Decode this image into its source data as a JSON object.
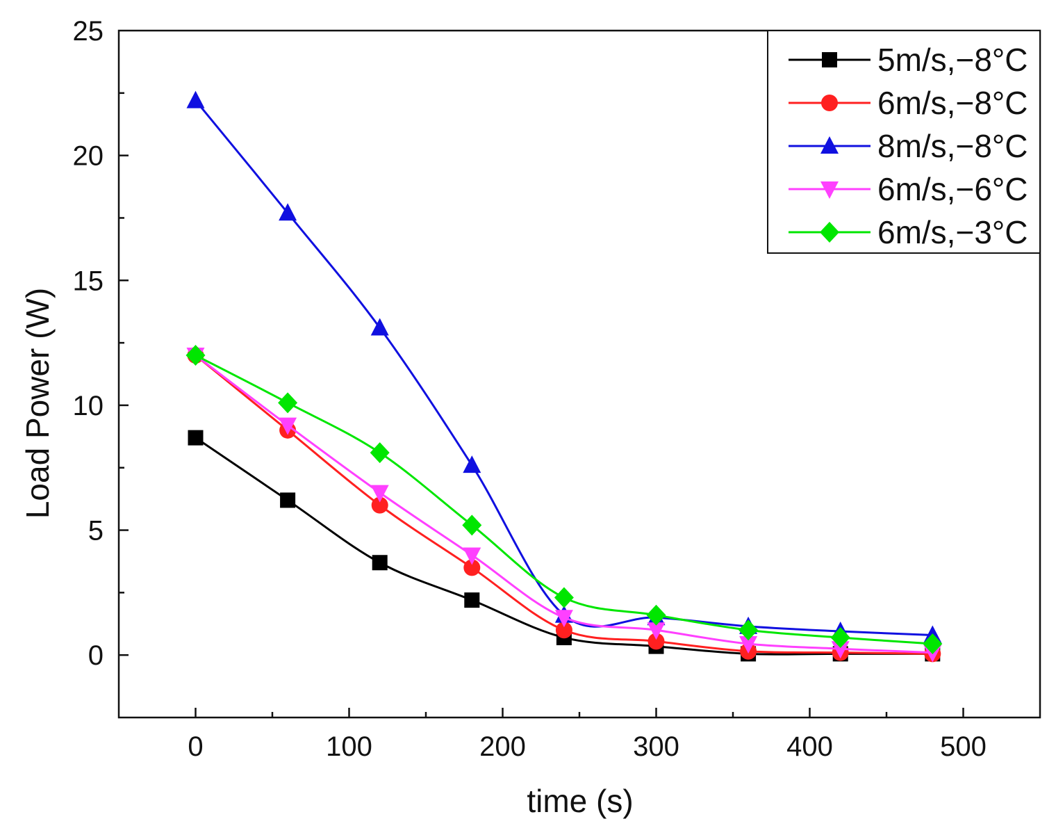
{
  "chart_data": {
    "type": "line",
    "xlabel": "time (s)",
    "ylabel": "Load Power (W)",
    "xlim": [
      -50,
      550
    ],
    "ylim": [
      -2.5,
      25
    ],
    "xticks": [
      0,
      100,
      200,
      300,
      400,
      500
    ],
    "yticks": [
      0,
      5,
      10,
      15,
      20,
      25
    ],
    "xtick_labels": [
      "0",
      "100",
      "200",
      "300",
      "400",
      "500"
    ],
    "ytick_labels": [
      "0",
      "5",
      "10",
      "15",
      "20",
      "25"
    ],
    "grid": false,
    "legend_position": "top-right",
    "x": [
      0,
      60,
      120,
      180,
      240,
      300,
      360,
      420,
      480
    ],
    "series": [
      {
        "name": "5m/s,−8°C",
        "color": "#000000",
        "marker": "square",
        "values": [
          8.7,
          6.2,
          3.7,
          2.2,
          0.7,
          0.35,
          0.05,
          0.05,
          0.05
        ]
      },
      {
        "name": "6m/s,−8°C",
        "color": "#ff2020",
        "marker": "circle",
        "values": [
          12.0,
          9.0,
          6.0,
          3.5,
          1.0,
          0.55,
          0.15,
          0.1,
          0.05
        ]
      },
      {
        "name": "8m/s,−8°C",
        "color": "#1010e0",
        "marker": "triangle-up",
        "values": [
          22.2,
          17.7,
          13.1,
          7.6,
          1.6,
          1.5,
          1.15,
          0.95,
          0.8
        ]
      },
      {
        "name": "6m/s,−6°C",
        "color": "#ff40ff",
        "marker": "triangle-down",
        "values": [
          12.0,
          9.2,
          6.5,
          4.0,
          1.5,
          1.0,
          0.45,
          0.25,
          0.1
        ]
      },
      {
        "name": "6m/s,−3°C",
        "color": "#00e600",
        "marker": "diamond",
        "values": [
          12.0,
          10.1,
          8.1,
          5.2,
          2.3,
          1.6,
          1.0,
          0.7,
          0.45
        ]
      }
    ]
  }
}
